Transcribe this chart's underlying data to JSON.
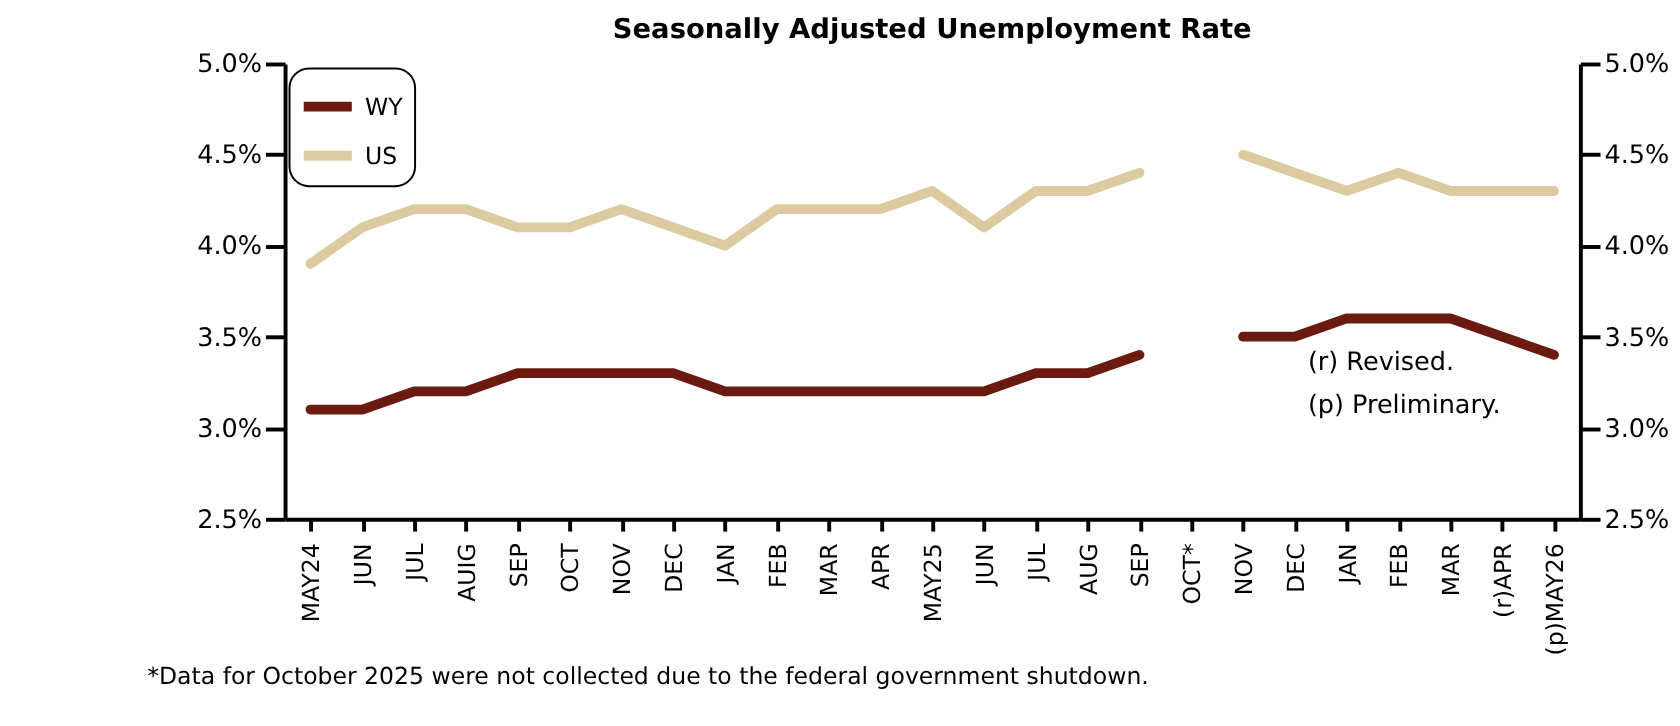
{
  "chart_data": {
    "type": "line",
    "title": "Seasonally Adjusted Unemployment Rate",
    "categories": [
      "MAY24",
      "JUN",
      "JUL",
      "AUIG",
      "SEP",
      "OCT",
      "NOV",
      "DEC",
      "JAN",
      "FEB",
      "MAR",
      "APR",
      "MAY25",
      "JUN",
      "JUL",
      "AUG",
      "SEP",
      "OCT*",
      "NOV",
      "DEC",
      "JAN",
      "FEB",
      "MAR",
      "(r)APR",
      "(p)MAY26"
    ],
    "series": [
      {
        "name": "WY",
        "color": "#6b1a10",
        "values": [
          3.1,
          3.1,
          3.2,
          3.2,
          3.3,
          3.3,
          3.3,
          3.3,
          3.2,
          3.2,
          3.2,
          3.2,
          3.2,
          3.2,
          3.3,
          3.3,
          3.4,
          null,
          3.5,
          3.5,
          3.6,
          3.6,
          3.6,
          3.5,
          3.4
        ]
      },
      {
        "name": "US",
        "color": "#dccba0",
        "values": [
          3.9,
          4.1,
          4.2,
          4.2,
          4.1,
          4.1,
          4.2,
          4.1,
          4.0,
          4.2,
          4.2,
          4.2,
          4.3,
          4.1,
          4.3,
          4.3,
          4.4,
          null,
          4.5,
          4.4,
          4.3,
          4.4,
          4.3,
          4.3,
          4.3
        ]
      }
    ],
    "ylim": [
      2.5,
      5.0
    ],
    "yticks": [
      {
        "value": 2.5,
        "label": "2.5%"
      },
      {
        "value": 3.0,
        "label": "3.0%"
      },
      {
        "value": 3.5,
        "label": "3.5%"
      },
      {
        "value": 4.0,
        "label": "4.0%"
      },
      {
        "value": 4.5,
        "label": "4.5%"
      },
      {
        "value": 5.0,
        "label": "5.0%"
      }
    ],
    "y2lim": [
      2.5,
      5.0
    ],
    "y2ticks": [
      {
        "value": 2.5,
        "label": "2.5%"
      },
      {
        "value": 3.0,
        "label": "3.0%"
      },
      {
        "value": 3.5,
        "label": "3.5%"
      },
      {
        "value": 4.0,
        "label": "4.0%"
      },
      {
        "value": 4.5,
        "label": "4.5%"
      },
      {
        "value": 5.0,
        "label": "5.0%"
      }
    ],
    "legend": "top left",
    "grid": false,
    "marker": "none",
    "line_style": "solid",
    "annotations": [
      "(r) Revised.",
      "(p) Preliminary.",
      "*Data for October 2025 were not collected due to the federal government shutdown."
    ]
  }
}
